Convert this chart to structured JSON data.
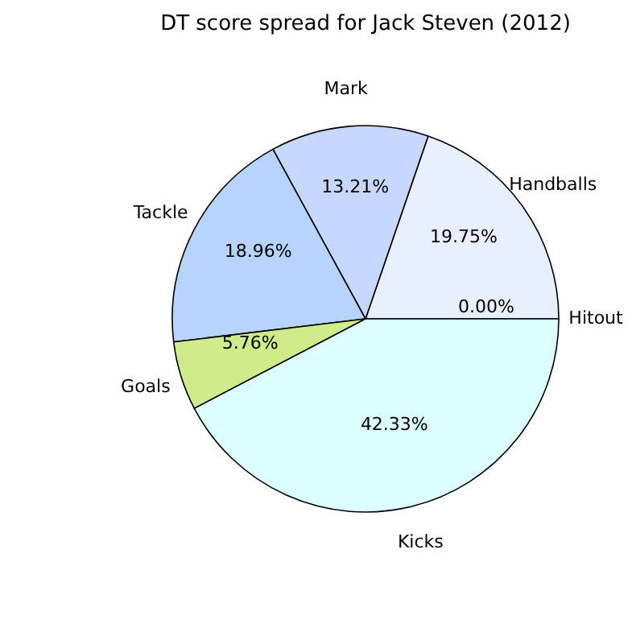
{
  "chart_data": {
    "type": "pie",
    "title": "DT score spread for Jack Steven (2012)",
    "categories": [
      "Hitout",
      "Handballs",
      "Mark",
      "Tackle",
      "Goals",
      "Kicks"
    ],
    "values": [
      0.0,
      19.75,
      13.21,
      18.96,
      5.76,
      42.33
    ],
    "colors": [
      "#ffe8e8",
      "#e8f0ff",
      "#c6d8ff",
      "#b7d4ff",
      "#d0ec8a",
      "#dcffff"
    ],
    "value_labels": [
      "0.00%",
      "19.75%",
      "13.21%",
      "18.96%",
      "5.76%",
      "42.33%"
    ],
    "legend": false
  }
}
